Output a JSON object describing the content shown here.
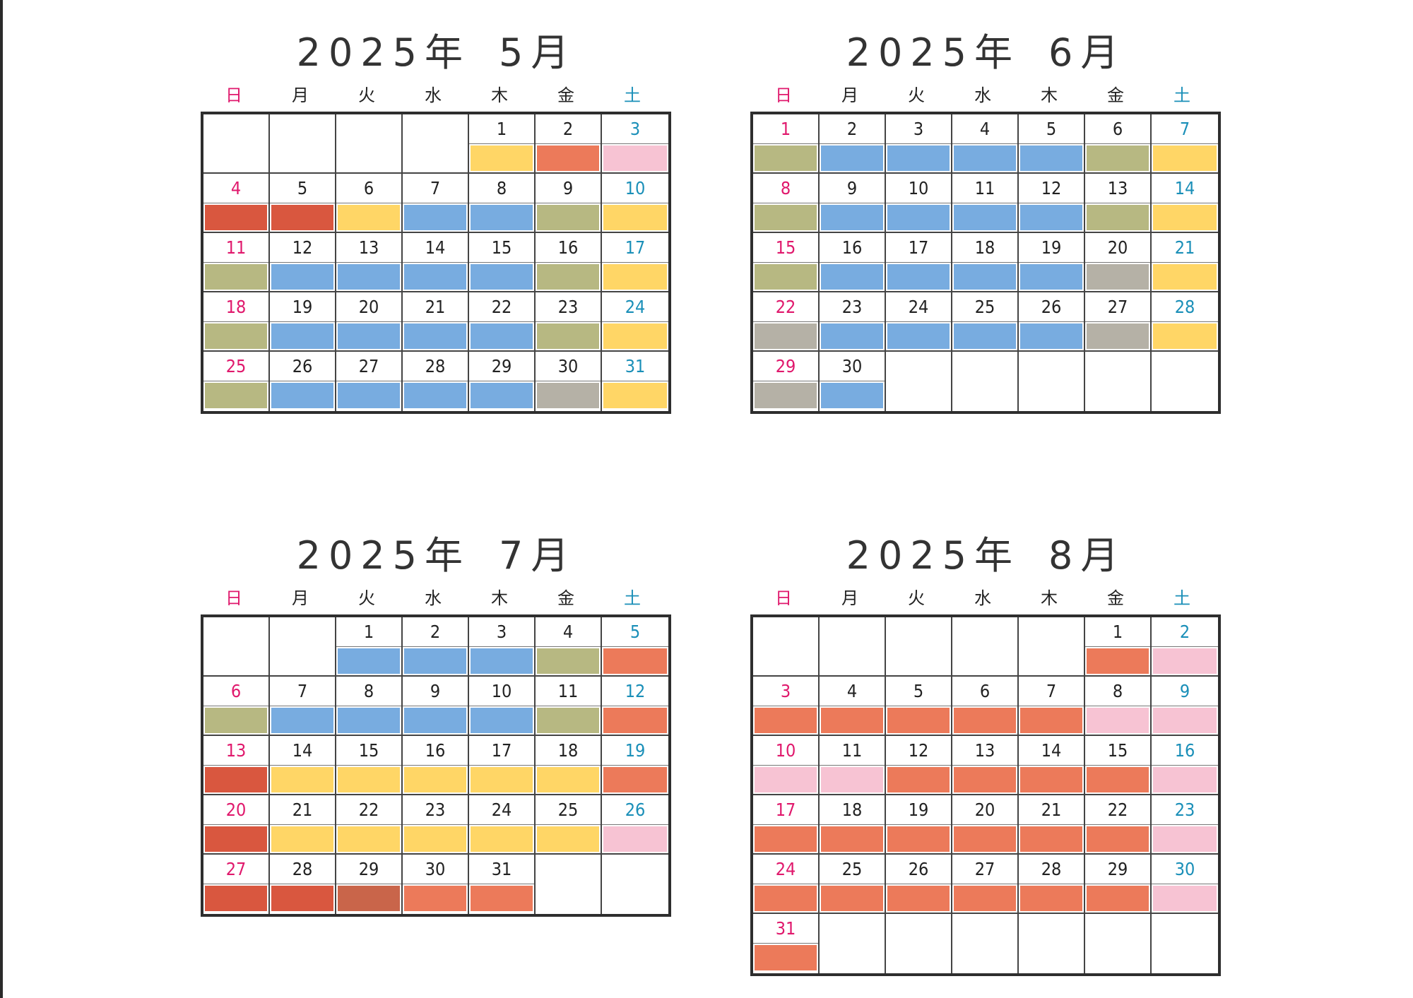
{
  "weekday_labels": [
    "日",
    "月",
    "火",
    "水",
    "木",
    "金",
    "土"
  ],
  "colors": {
    "olive": "#b7b882",
    "blue": "#78ace0",
    "yellow": "#ffd666",
    "orange": "#ec7a5a",
    "red": "#d9573f",
    "pink": "#f7c3d3",
    "gray": "#b5b1a6",
    "brown": "#c9654a"
  },
  "months": [
    {
      "year": "2025年",
      "month": "5月",
      "start_weekday": 4,
      "days": 31,
      "day_colors": [
        "yellow",
        "orange",
        "pink",
        "red",
        "red",
        "yellow",
        "blue",
        "blue",
        "olive",
        "yellow",
        "olive",
        "blue",
        "blue",
        "blue",
        "blue",
        "olive",
        "yellow",
        "olive",
        "blue",
        "blue",
        "blue",
        "blue",
        "olive",
        "yellow",
        "olive",
        "blue",
        "blue",
        "blue",
        "blue",
        "gray",
        "yellow"
      ]
    },
    {
      "year": "2025年",
      "month": "6月",
      "start_weekday": 0,
      "days": 30,
      "day_colors": [
        "olive",
        "blue",
        "blue",
        "blue",
        "blue",
        "olive",
        "yellow",
        "olive",
        "blue",
        "blue",
        "blue",
        "blue",
        "olive",
        "yellow",
        "olive",
        "blue",
        "blue",
        "blue",
        "blue",
        "gray",
        "yellow",
        "gray",
        "blue",
        "blue",
        "blue",
        "blue",
        "gray",
        "yellow",
        "gray",
        "blue"
      ]
    },
    {
      "year": "2025年",
      "month": "7月",
      "start_weekday": 2,
      "days": 31,
      "day_colors": [
        "blue",
        "blue",
        "blue",
        "olive",
        "orange",
        "olive",
        "blue",
        "blue",
        "blue",
        "blue",
        "olive",
        "orange",
        "red",
        "yellow",
        "yellow",
        "yellow",
        "yellow",
        "yellow",
        "orange",
        "red",
        "yellow",
        "yellow",
        "yellow",
        "yellow",
        "yellow",
        "pink",
        "red",
        "red",
        "brown",
        "orange",
        "orange"
      ]
    },
    {
      "year": "2025年",
      "month": "8月",
      "start_weekday": 5,
      "days": 31,
      "day_colors": [
        "orange",
        "pink",
        "orange",
        "orange",
        "orange",
        "orange",
        "orange",
        "pink",
        "pink",
        "pink",
        "pink",
        "orange",
        "orange",
        "orange",
        "orange",
        "pink",
        "orange",
        "orange",
        "orange",
        "orange",
        "orange",
        "orange",
        "pink",
        "orange",
        "orange",
        "orange",
        "orange",
        "orange",
        "orange",
        "pink",
        "orange"
      ]
    }
  ]
}
